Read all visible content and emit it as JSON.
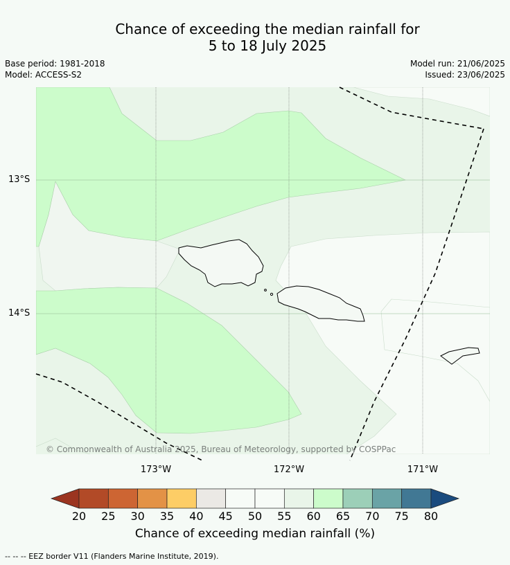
{
  "title": {
    "line1": "Chance of exceeding the median rainfall for",
    "line2": "5 to 18 July 2025"
  },
  "meta": {
    "base_period": "Base period: 1981-2018",
    "model": "Model: ACCESS-S2",
    "model_run": "Model run: 21/06/2025",
    "issued": "Issued: 23/06/2025"
  },
  "map": {
    "lat_labels": [
      "13°S",
      "14°S"
    ],
    "lon_labels": [
      "173°W",
      "172°W",
      "171°W"
    ],
    "copyright": "© Commonwealth of Australia 2025, Bureau of Meteorology, supported by COSPPac",
    "colors": {
      "c55_60": "#e9f5e9",
      "c60_65": "#ccfccb",
      "c50_55": "#f7fbf7",
      "land_outline": "#000000",
      "eez": "#000000"
    }
  },
  "colorbar": {
    "ticks": [
      "20",
      "25",
      "30",
      "35",
      "40",
      "45",
      "50",
      "55",
      "60",
      "65",
      "70",
      "75",
      "80"
    ],
    "colors": [
      "#b24a27",
      "#cd6533",
      "#e39246",
      "#fdcd66",
      "#ebe9e5",
      "#f7fbf7",
      "#f7fbf7",
      "#e9f5e9",
      "#ccfccb",
      "#9ccfb8",
      "#6aa3a6",
      "#417894"
    ],
    "low_arrow_color": "#9b3520",
    "high_arrow_color": "#1a4b7e",
    "label": "Chance of exceeding median rainfall (%)"
  },
  "footnote": "-- -- -- EEZ border V11 (Flanders Marine Institute, 2019)."
}
